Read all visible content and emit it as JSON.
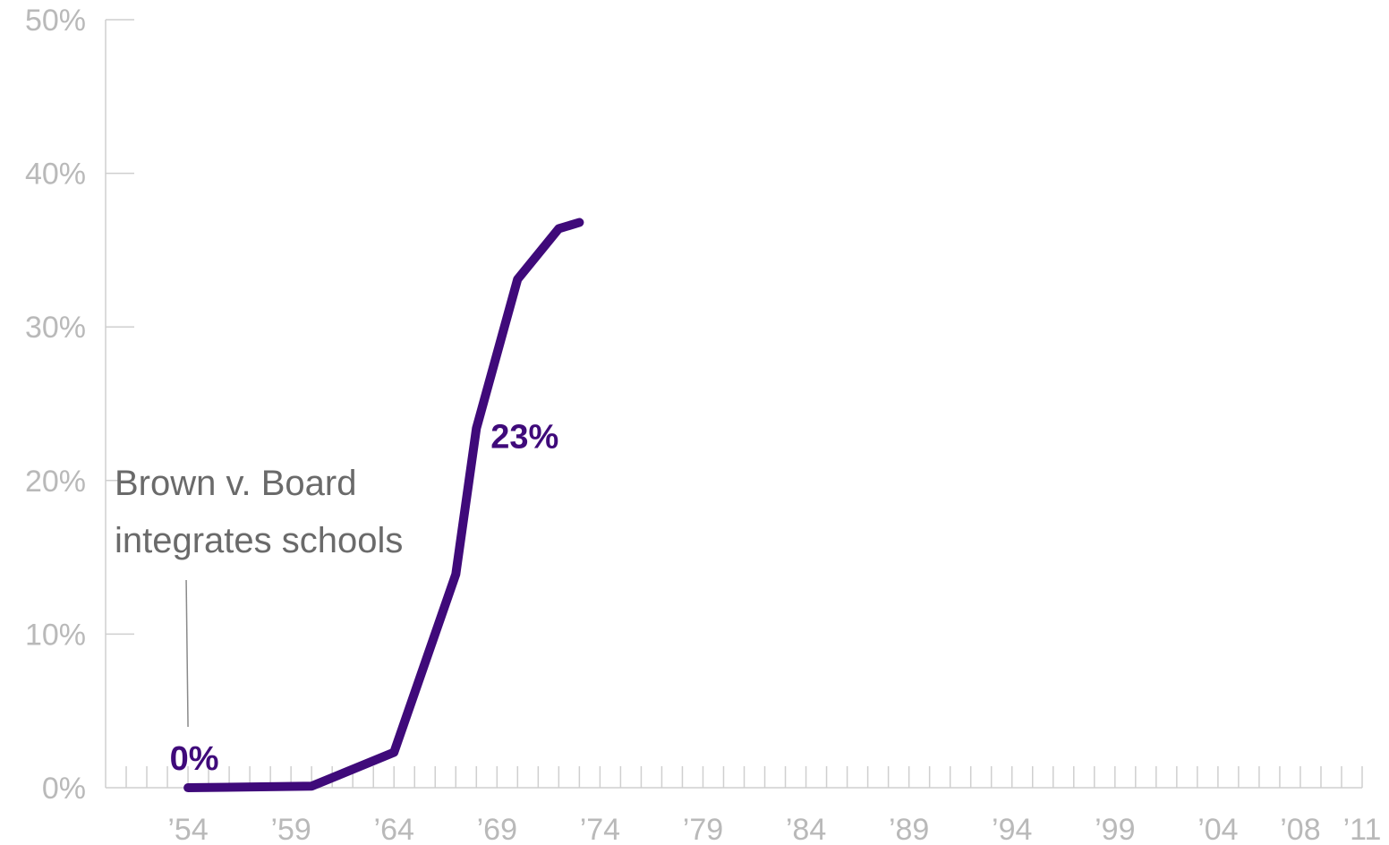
{
  "chart_data": {
    "type": "line",
    "title": "",
    "xlabel": "",
    "ylabel": "",
    "x_ticks": [
      "’54",
      "’59",
      "’64",
      "’69",
      "’74",
      "’79",
      "’84",
      "’89",
      "’94",
      "’99",
      "’04",
      "’08",
      "’11"
    ],
    "x_tick_years": [
      1954,
      1959,
      1964,
      1969,
      1974,
      1979,
      1984,
      1989,
      1994,
      1999,
      2004,
      2008,
      2011
    ],
    "y_ticks": [
      "0%",
      "10%",
      "20%",
      "30%",
      "40%",
      "50%"
    ],
    "xlim": [
      1950,
      2011
    ],
    "ylim": [
      0,
      50
    ],
    "grid": false,
    "series_color": "#3f0a7a",
    "series": [
      {
        "name": "",
        "x": [
          1954,
          1960,
          1964,
          1967,
          1968,
          1970,
          1972,
          1973
        ],
        "y": [
          0,
          0.1,
          2.3,
          13.9,
          23.4,
          33.1,
          36.4,
          36.8
        ]
      }
    ],
    "data_labels": [
      {
        "text": "0%",
        "x": 1954,
        "y": 0
      },
      {
        "text": "23%",
        "x": 1968,
        "y": 23.4
      }
    ],
    "annotation": {
      "lines": [
        "Brown v. Board",
        "integrates schools"
      ],
      "x": 1954
    }
  }
}
